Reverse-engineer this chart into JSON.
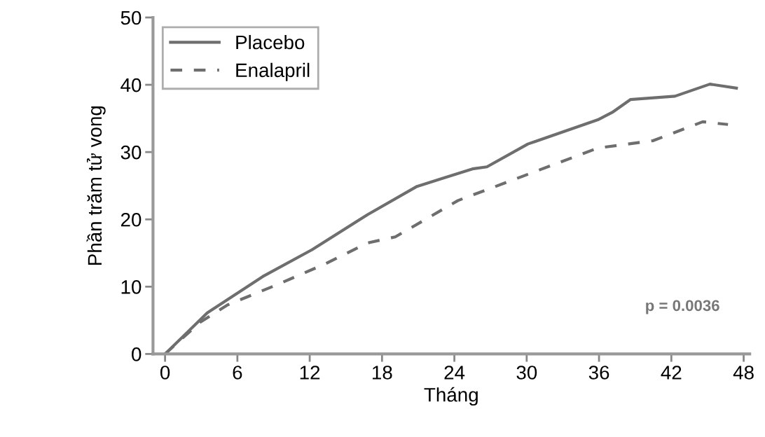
{
  "chart_data": {
    "type": "line",
    "xlabel": "Tháng",
    "ylabel": "Phần trăm tử vong",
    "xlim": [
      -1,
      48.5
    ],
    "ylim": [
      0,
      50
    ],
    "xticks": [
      0,
      6,
      12,
      18,
      24,
      30,
      36,
      42,
      48
    ],
    "yticks": [
      0,
      10,
      20,
      30,
      40,
      50
    ],
    "grid": false,
    "legend": "top left",
    "annotations": [
      "p = 0.0036"
    ],
    "series": [
      {
        "name": "Placebo",
        "color": "#6e6e6e",
        "line_style": "solid",
        "x": [
          0,
          3.5,
          8.1,
          12.2,
          16.8,
          20.9,
          25.5,
          26.7,
          30.1,
          35.9,
          37.1,
          38.6,
          42.3,
          45.2,
          47.4
        ],
        "values": [
          0,
          6.1,
          11.5,
          15.5,
          20.7,
          24.9,
          27.5,
          27.8,
          31.2,
          34.8,
          35.9,
          37.8,
          38.3,
          40.1,
          39.5
        ]
      },
      {
        "name": "Enalapril",
        "color": "#6e6e6e",
        "line_style": "dashed",
        "x": [
          0,
          2.9,
          5.2,
          9.3,
          13.3,
          16.8,
          19.1,
          24.3,
          30.1,
          35.9,
          40.5,
          44.6,
          46.7
        ],
        "values": [
          0,
          4.7,
          7.3,
          10.3,
          13.4,
          16.5,
          17.4,
          22.8,
          26.7,
          30.6,
          31.7,
          34.5,
          34.1
        ]
      }
    ]
  }
}
